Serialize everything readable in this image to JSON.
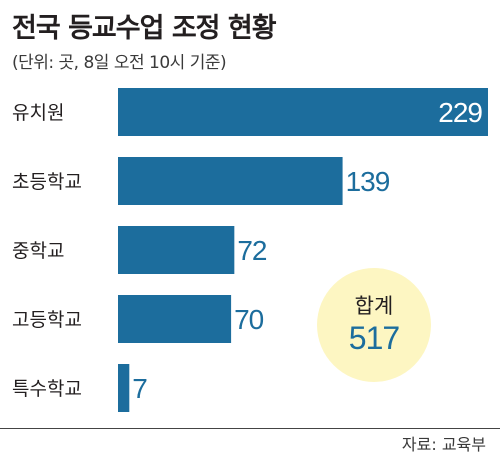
{
  "title": "전국 등교수업 조정 현황",
  "subtitle": "(단위: 곳, 8일 오전 10시 기준)",
  "source": "자료: 교육부",
  "total": {
    "label": "합계",
    "value": "517"
  },
  "colors": {
    "bar": "#1c6d9d",
    "value_text": "#1c6d9d",
    "value_text_inside": "#ffffff",
    "badge_fill": "#fdf6c2"
  },
  "chart_data": {
    "type": "bar",
    "orientation": "horizontal",
    "categories": [
      "유치원",
      "초등학교",
      "중학교",
      "고등학교",
      "특수학교"
    ],
    "values": [
      229,
      139,
      72,
      70,
      7
    ],
    "title": "전국 등교수업 조정 현황",
    "subtitle": "(단위: 곳, 8일 오전 10시 기준)",
    "xlabel": "",
    "ylabel": "",
    "xlim": [
      0,
      229
    ],
    "grid": false,
    "legend": "none"
  }
}
